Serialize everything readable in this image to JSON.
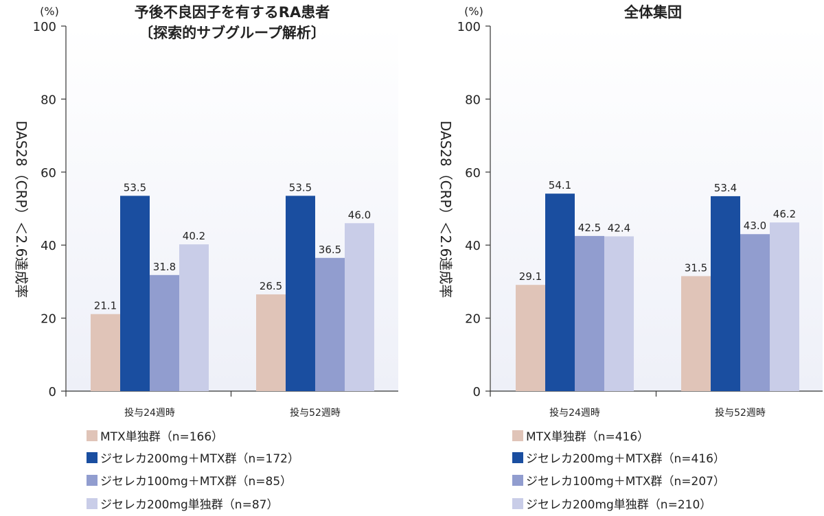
{
  "colors": {
    "mtx": "#e0c4b8",
    "jyseleca200_mtx": "#1a4ea0",
    "jyseleca100_mtx": "#919dcf",
    "jyseleca200_mono": "#c9cde8",
    "axis": "#333333",
    "bg_fade": "#eef0f8"
  },
  "y_axis_label": "DAS28（CRP）＜2.6達成率",
  "chart_data": [
    {
      "type": "bar",
      "title_lines": [
        "予後不良因子を有するRA患者",
        "〔探索的サブグループ解析〕"
      ],
      "unit": "(%)",
      "ylim": [
        0,
        100
      ],
      "yticks": [
        "0",
        "20",
        "40",
        "60",
        "80",
        "100"
      ],
      "categories": [
        "投与24週時",
        "投与52週時"
      ],
      "series": [
        {
          "name": "MTX単独群（n=166）",
          "color_key": "mtx",
          "values": [
            21.1,
            26.5
          ],
          "labels": [
            "21.1",
            "26.5"
          ]
        },
        {
          "name": "ジセレカ200mg＋MTX群（n=172）",
          "color_key": "jyseleca200_mtx",
          "values": [
            53.5,
            53.5
          ],
          "labels": [
            "53.5",
            "53.5"
          ]
        },
        {
          "name": "ジセレカ100mg＋MTX群（n=85）",
          "color_key": "jyseleca100_mtx",
          "values": [
            31.8,
            36.5
          ],
          "labels": [
            "31.8",
            "36.5"
          ]
        },
        {
          "name": "ジセレカ200mg単独群（n=87）",
          "color_key": "jyseleca200_mono",
          "values": [
            40.2,
            46.0
          ],
          "labels": [
            "40.2",
            "46.0"
          ]
        }
      ]
    },
    {
      "type": "bar",
      "title_lines": [
        "全体集団"
      ],
      "unit": "(%)",
      "ylim": [
        0,
        100
      ],
      "yticks": [
        "0",
        "20",
        "40",
        "60",
        "80",
        "100"
      ],
      "categories": [
        "投与24週時",
        "投与52週時"
      ],
      "series": [
        {
          "name": "MTX単独群（n=416）",
          "color_key": "mtx",
          "values": [
            29.1,
            31.5
          ],
          "labels": [
            "29.1",
            "31.5"
          ]
        },
        {
          "name": "ジセレカ200mg＋MTX群（n=416）",
          "color_key": "jyseleca200_mtx",
          "values": [
            54.1,
            53.4
          ],
          "labels": [
            "54.1",
            "53.4"
          ]
        },
        {
          "name": "ジセレカ100mg＋MTX群（n=207）",
          "color_key": "jyseleca100_mtx",
          "values": [
            42.5,
            43.0
          ],
          "labels": [
            "42.5",
            "43.0"
          ]
        },
        {
          "name": "ジセレカ200mg単独群（n=210）",
          "color_key": "jyseleca200_mono",
          "values": [
            42.4,
            46.2
          ],
          "labels": [
            "42.4",
            "46.2"
          ]
        }
      ]
    }
  ]
}
